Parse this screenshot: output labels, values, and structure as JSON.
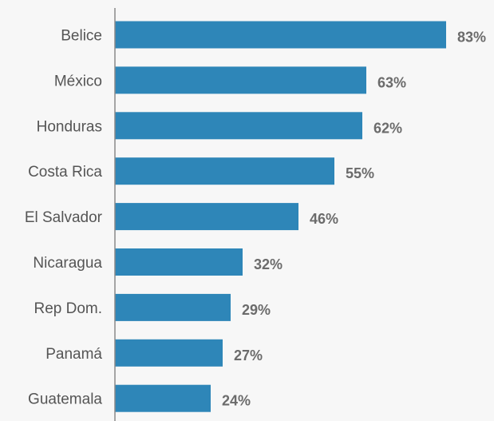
{
  "chart_data": {
    "type": "bar",
    "orientation": "horizontal",
    "categories": [
      "Belice",
      "México",
      "Honduras",
      "Costa Rica",
      "El Salvador",
      "Nicaragua",
      "Rep Dom.",
      "Panamá",
      "Guatemala"
    ],
    "values": [
      83,
      63,
      62,
      55,
      46,
      32,
      29,
      27,
      24
    ],
    "value_labels": [
      "83%",
      "63%",
      "62%",
      "55%",
      "46%",
      "32%",
      "29%",
      "27%",
      "24%"
    ],
    "title": "",
    "xlabel": "",
    "ylabel": "",
    "xlim": [
      0,
      83
    ],
    "grid": false,
    "legend": "none",
    "bar_color": "#2e86b8",
    "label_color": "#555555",
    "value_label_color": "#6b6b6b",
    "axis_color": "#888888"
  }
}
